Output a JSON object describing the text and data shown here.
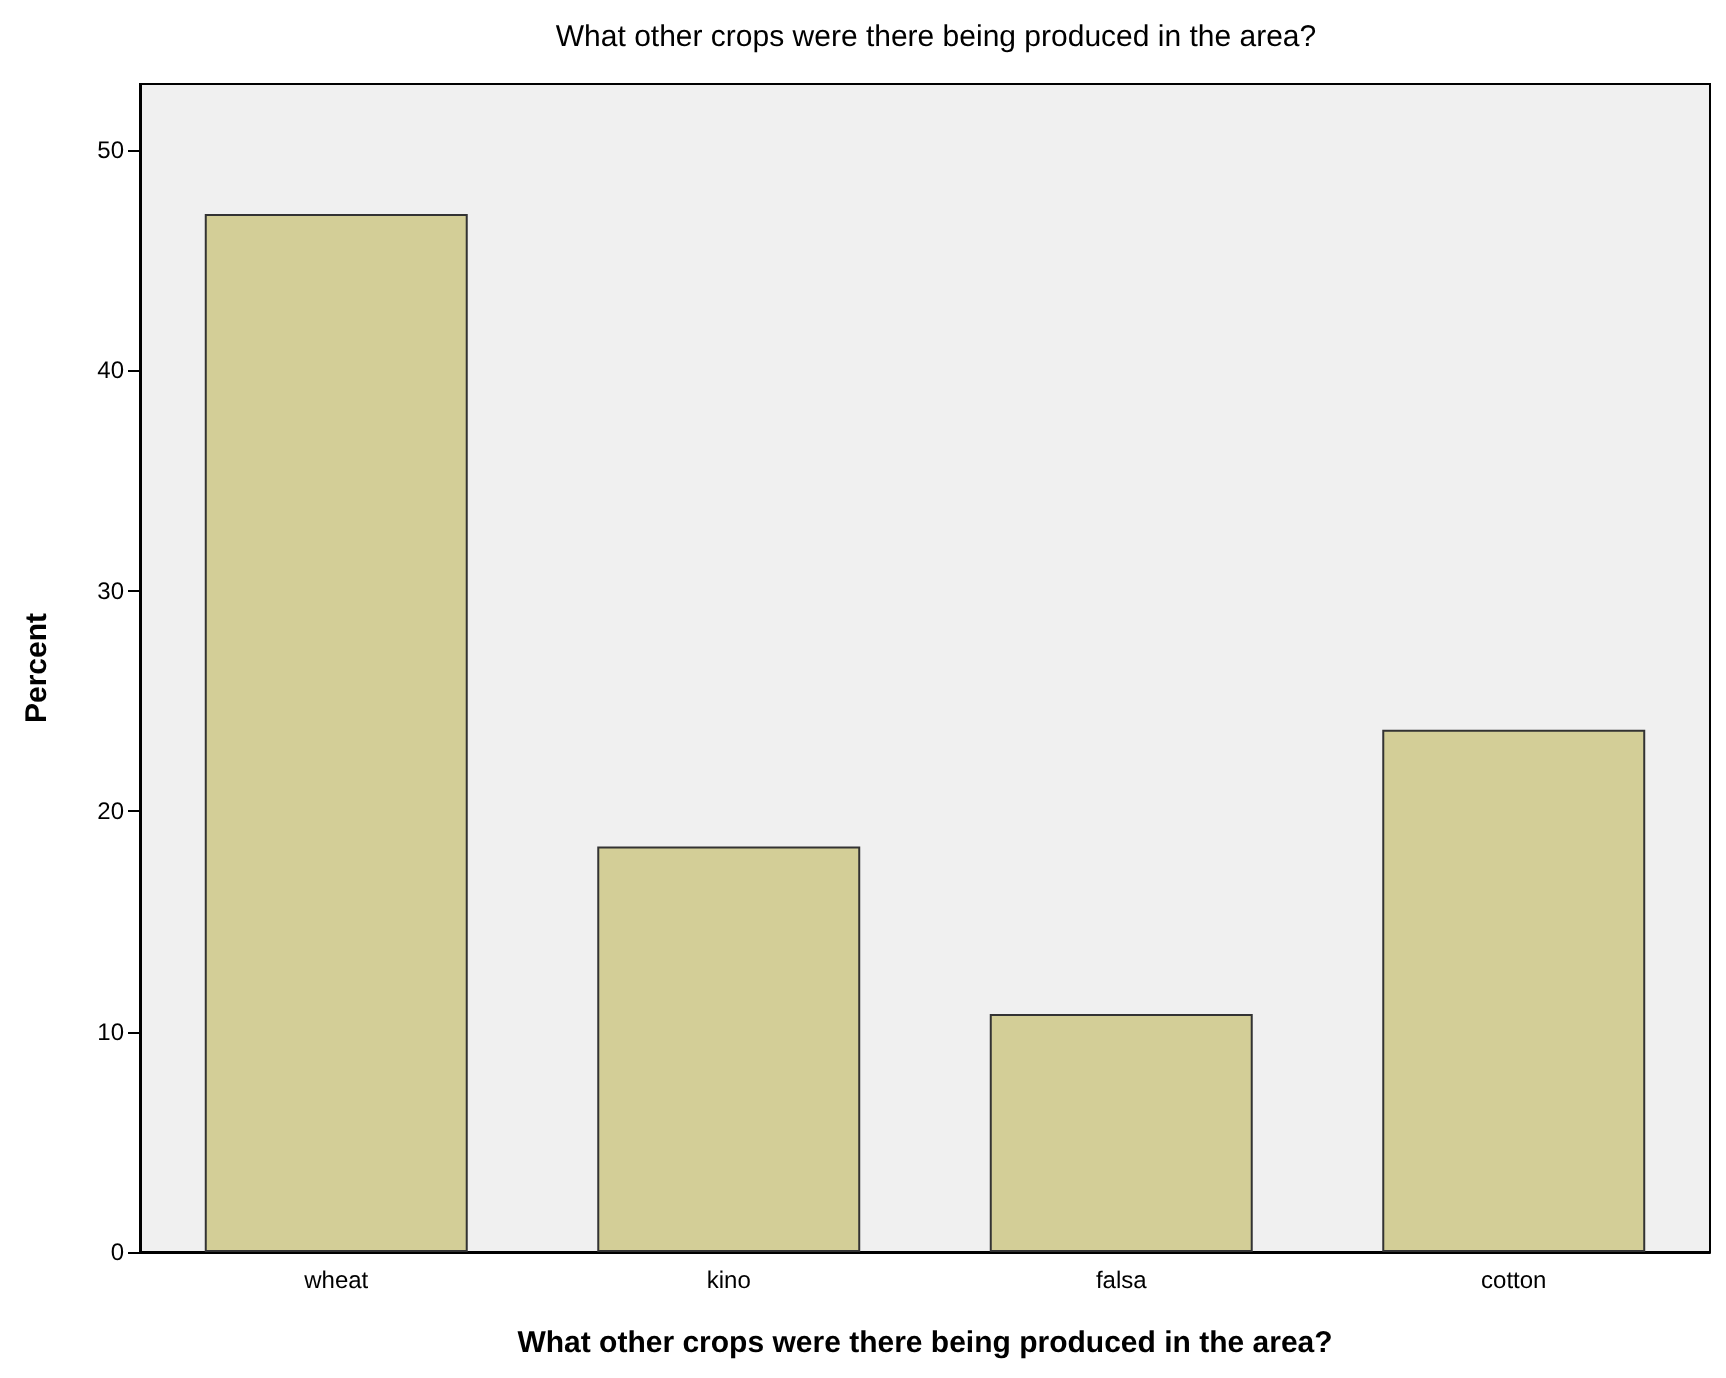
{
  "chart_data": {
    "type": "bar",
    "title": "What other crops were there being produced in the area?",
    "xlabel": "What other crops were there being produced in the area?",
    "ylabel": "Percent",
    "categories": [
      "wheat",
      "kino",
      "falsa",
      "cotton"
    ],
    "values": [
      47.1,
      18.4,
      10.8,
      23.7
    ],
    "color": "#d3ce97",
    "ylim": [
      0,
      53
    ],
    "yticks": [
      0,
      10,
      20,
      30,
      40,
      50
    ],
    "grid": false
  }
}
